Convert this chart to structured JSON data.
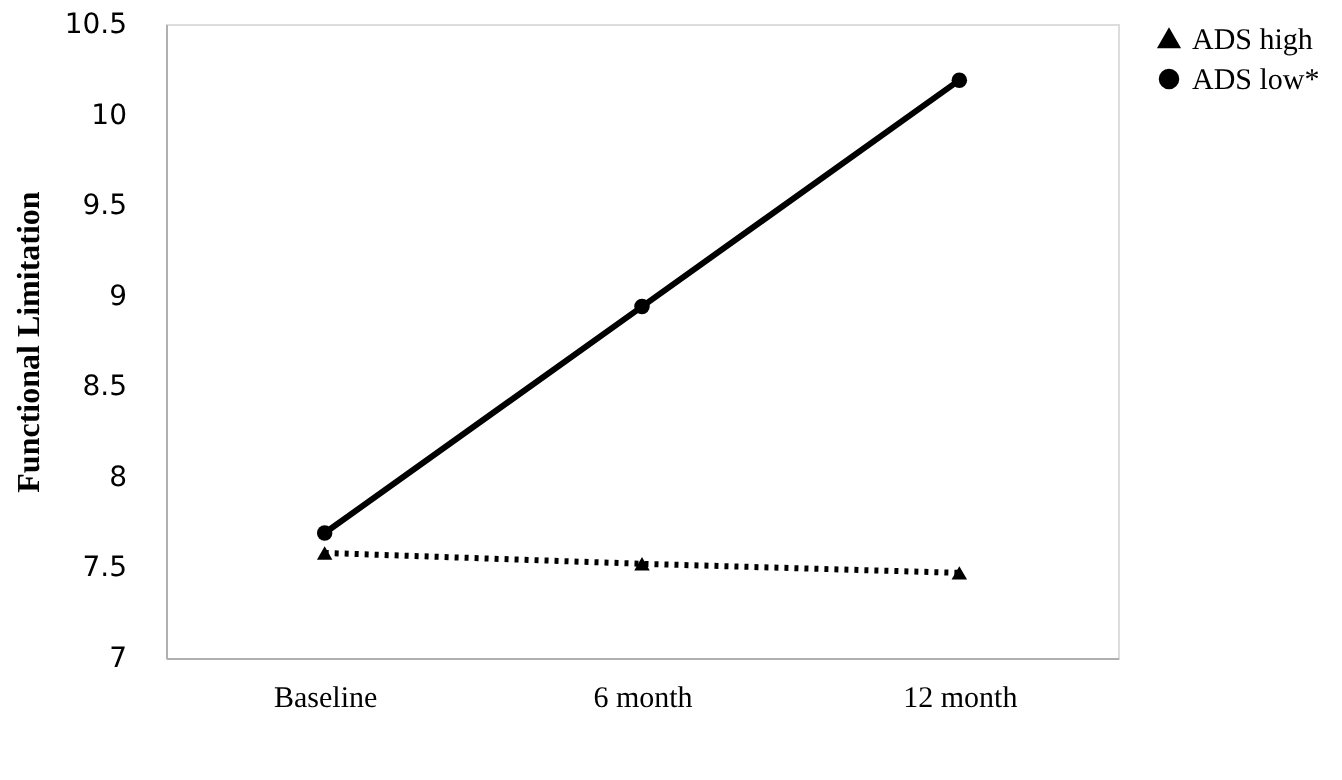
{
  "chart_data": {
    "type": "line",
    "ylabel": "Functional Limitation",
    "categories": [
      "Baseline",
      "6 month",
      "12 month"
    ],
    "series": [
      {
        "name": "ADS high",
        "color": "#000000",
        "values": [
          7.58,
          7.52,
          7.47
        ],
        "marker": "triangle",
        "line_style": "dotted"
      },
      {
        "name": "ADS low*",
        "color": "#000000",
        "values": [
          7.69,
          8.94,
          10.19
        ],
        "marker": "circle",
        "line_style": "solid"
      }
    ],
    "ylim": [
      7,
      10.5
    ],
    "yticks": [
      7,
      7.5,
      8,
      8.5,
      9,
      9.5,
      10,
      10.5
    ],
    "grid": false,
    "legend": "right"
  }
}
